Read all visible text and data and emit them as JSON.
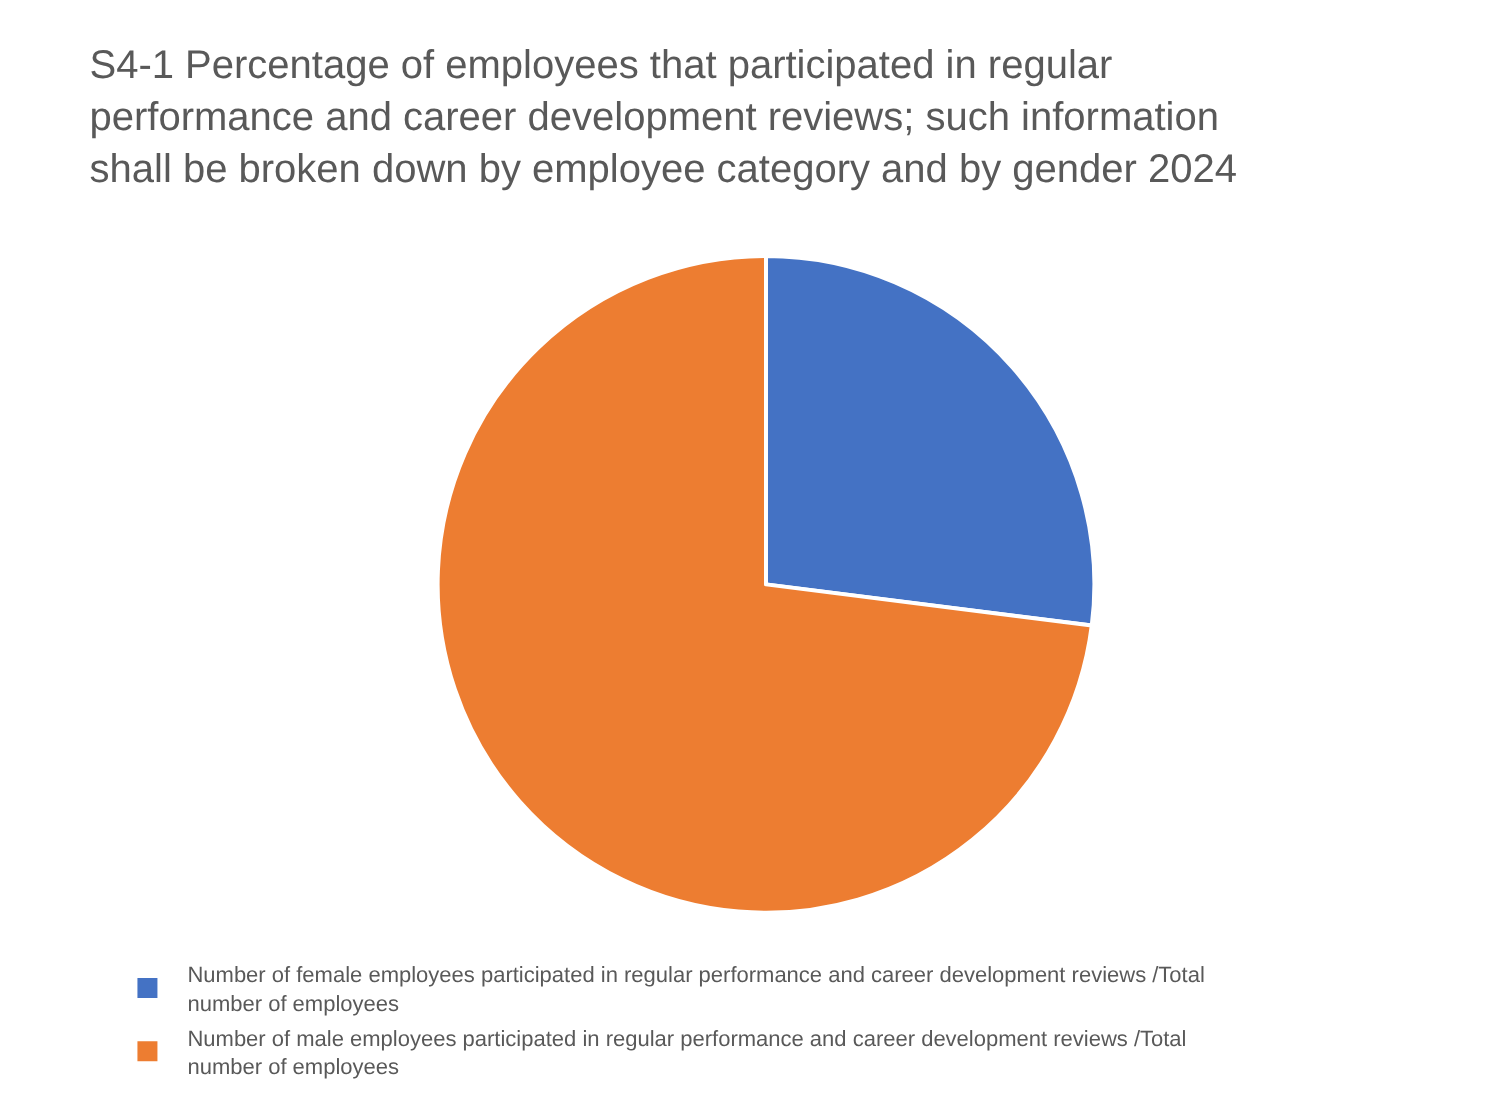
{
  "chart_data": {
    "type": "pie",
    "title": "S4-1 Percentage of employees that participated in regular performance and career development reviews; such information shall be broken down by employee category and by gender 2024",
    "categories": [
      "Number of female employees participated in regular performance and career development reviews /Total number of employees",
      "Number of male employees participated in regular performance and career development reviews /Total number of employees"
    ],
    "values": [
      27,
      73
    ],
    "colors": [
      "#4472c4",
      "#ed7d31"
    ],
    "legend": "bottom"
  }
}
